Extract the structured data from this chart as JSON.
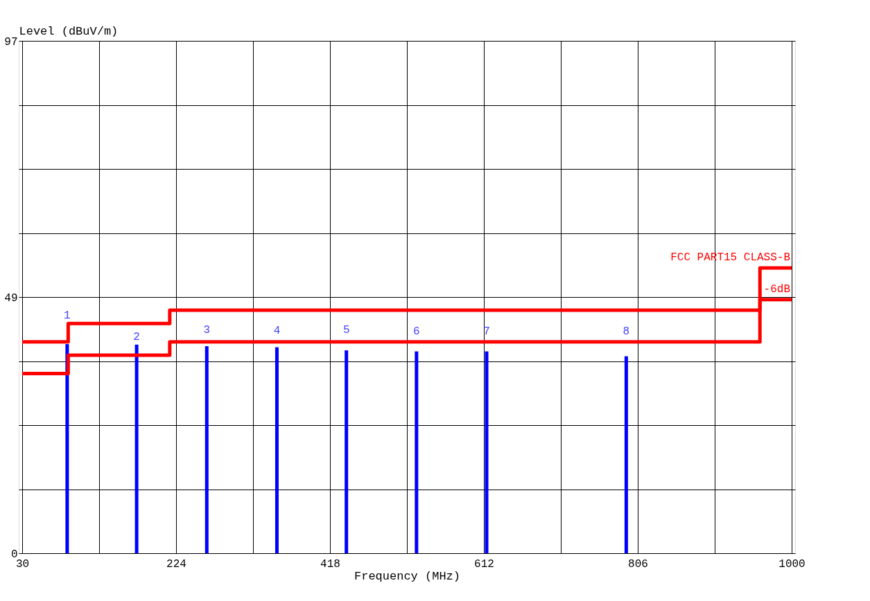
{
  "chart_data": {
    "type": "bar",
    "xlabel": "Frequency (MHz)",
    "ylabel": "Level (dBuV/m)",
    "xlim": [
      30,
      1000
    ],
    "ylim": [
      0,
      97
    ],
    "xticks": [
      30,
      {
        "value": 127,
        "label": null
      },
      224,
      {
        "value": 321,
        "label": null
      },
      418,
      {
        "value": 515,
        "label": null
      },
      612,
      {
        "value": 709,
        "label": null
      },
      806,
      {
        "value": 903,
        "label": null
      },
      1000
    ],
    "yticks": [
      0,
      {
        "value": 12.125,
        "label": null
      },
      {
        "value": 24.25,
        "label": null
      },
      {
        "value": 36.375,
        "label": null
      },
      {
        "value": 48.5,
        "label": "49"
      },
      {
        "value": 60.625,
        "label": null
      },
      {
        "value": 72.75,
        "label": null
      },
      {
        "value": 84.875,
        "label": null
      },
      97
    ],
    "grid": true,
    "annotations": [
      {
        "text": "1",
        "x": 86.7,
        "y": 39.6
      },
      {
        "text": "2",
        "x": 174.3,
        "y": 39.5
      },
      {
        "text": "3",
        "x": 262.7,
        "y": 39.2
      },
      {
        "text": "4",
        "x": 351.1,
        "y": 39.0
      },
      {
        "text": "5",
        "x": 438.7,
        "y": 38.4
      },
      {
        "text": "6",
        "x": 527.1,
        "y": 38.2
      },
      {
        "text": "7",
        "x": 615.5,
        "y": 38.2
      },
      {
        "text": "8",
        "x": 791.5,
        "y": 37.3
      }
    ],
    "series": [
      {
        "color": "#0000ff",
        "x": [
          86.7,
          174.3,
          262.7,
          351.1,
          438.7,
          527.1,
          615.5,
          791.5
        ],
        "values": [
          39.6,
          39.5,
          39.2,
          39.0,
          38.4,
          38.2,
          38.2,
          37.3
        ]
      },
      {
        "type": "step",
        "name": "FCC PART15 CLASS-B",
        "color": "#ff0000",
        "x": [
          30,
          88,
          216,
          960,
          1000
        ],
        "values": [
          40,
          43.5,
          46,
          54,
          54
        ]
      },
      {
        "type": "step",
        "name": "-6dB",
        "color": "#ff0000",
        "x": [
          30,
          88,
          216,
          960,
          1000
        ],
        "values": [
          34,
          37.5,
          40,
          48,
          48
        ]
      }
    ]
  }
}
